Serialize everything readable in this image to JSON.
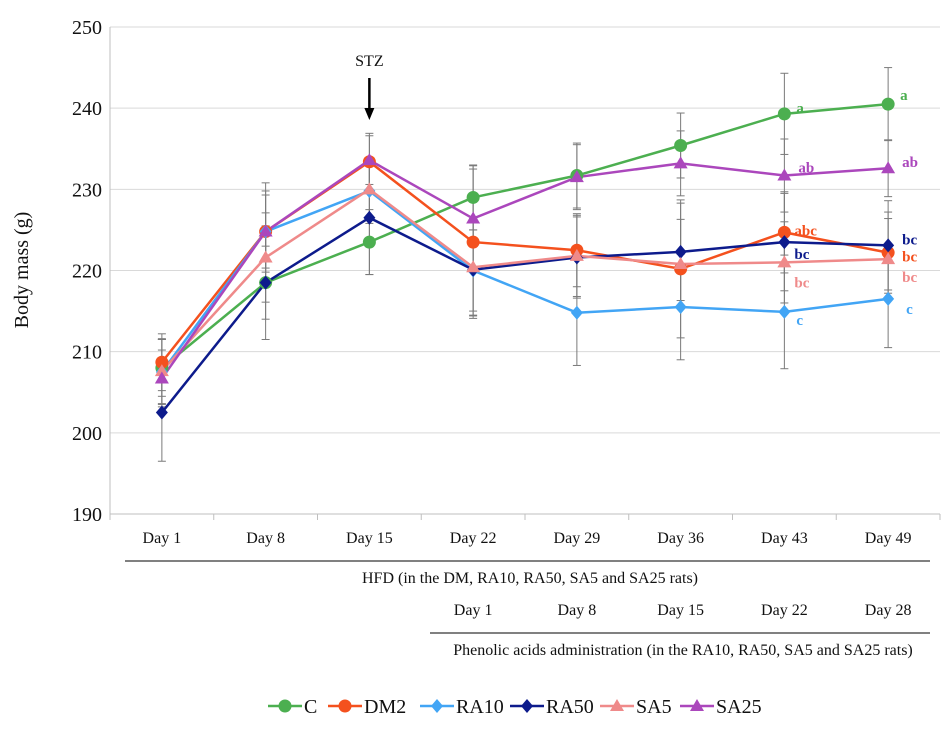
{
  "chart_data": {
    "type": "line",
    "ylabel": "Body mass (g)",
    "xlabel": "",
    "ylim": [
      190,
      250
    ],
    "yticks": [
      190,
      200,
      210,
      220,
      230,
      240,
      250
    ],
    "grid": "horizontal",
    "legend_position": "bottom",
    "categories": [
      "Day 1",
      "Day 8",
      "Day 15",
      "Day 22",
      "Day 29",
      "Day 36",
      "Day 43",
      "Day 49"
    ],
    "second_axis": {
      "labels": [
        "Day 1",
        "Day 8",
        "Day 15",
        "Day 22",
        "Day 28"
      ],
      "aligned_from_index": 3
    },
    "annotations": {
      "arrow_label": "STZ",
      "arrow_at_index": 2,
      "hfd_caption": "HFD (in the DM, RA10, RA50, SA5 and SA25 rats)",
      "phenolic_caption": "Phenolic acids administration (in the RA10, RA50, SA5 and SA25 rats)"
    },
    "series": [
      {
        "name": "C",
        "color": "#4caf50",
        "marker": "circle",
        "values": [
          208.0,
          218.5,
          223.5,
          229.0,
          231.7,
          235.4,
          239.3,
          240.5
        ],
        "errors": [
          3.5,
          4.5,
          4.0,
          4.0,
          4.0,
          4.0,
          5.0,
          4.5
        ],
        "sig_labels": [
          "",
          "",
          "",
          "",
          "",
          "",
          "a",
          "a"
        ]
      },
      {
        "name": "DM2",
        "color": "#f4511e",
        "marker": "circle",
        "values": [
          208.7,
          224.8,
          233.4,
          223.5,
          222.5,
          220.2,
          224.7,
          222.2
        ],
        "errors": [
          3.5,
          5.0,
          3.5,
          9.0,
          4.5,
          8.5,
          5.0,
          5.0
        ],
        "sig_labels": [
          "",
          "",
          "",
          "",
          "",
          "",
          "abc",
          "bc"
        ]
      },
      {
        "name": "RA10",
        "color": "#42a5f5",
        "marker": "diamond",
        "values": [
          207.5,
          224.8,
          229.8,
          220.0,
          214.8,
          215.5,
          214.9,
          216.5
        ],
        "errors": [
          4.0,
          4.5,
          4.0,
          5.0,
          6.5,
          6.5,
          7.0,
          6.0
        ],
        "sig_labels": [
          "",
          "",
          "",
          "",
          "",
          "",
          "c",
          "c"
        ]
      },
      {
        "name": "RA50",
        "color": "#0d1b8c",
        "marker": "diamond",
        "values": [
          202.5,
          218.5,
          226.5,
          220.1,
          221.6,
          222.3,
          223.5,
          223.1
        ],
        "errors": [
          6.0,
          7.0,
          7.0,
          6.0,
          5.0,
          6.0,
          6.0,
          5.5
        ],
        "sig_labels": [
          "",
          "",
          "",
          "",
          "",
          "",
          "bc",
          "bc"
        ]
      },
      {
        "name": "SA5",
        "color": "#ef8a8a",
        "marker": "triangle",
        "values": [
          207.6,
          221.6,
          230.0,
          220.4,
          221.8,
          220.8,
          221.0,
          221.4
        ],
        "errors": [
          4.0,
          5.5,
          3.5,
          6.0,
          5.0,
          5.5,
          5.0,
          5.0
        ],
        "sig_labels": [
          "",
          "",
          "",
          "",
          "",
          "",
          "bc",
          "bc"
        ]
      },
      {
        "name": "SA25",
        "color": "#ab47bc",
        "marker": "triangle",
        "values": [
          206.7,
          224.8,
          233.6,
          226.4,
          231.5,
          233.2,
          231.7,
          232.6
        ],
        "errors": [
          3.5,
          6.0,
          3.0,
          6.5,
          4.0,
          4.0,
          4.5,
          3.5
        ],
        "sig_labels": [
          "",
          "",
          "",
          "",
          "",
          "",
          "ab",
          "ab"
        ]
      }
    ]
  }
}
